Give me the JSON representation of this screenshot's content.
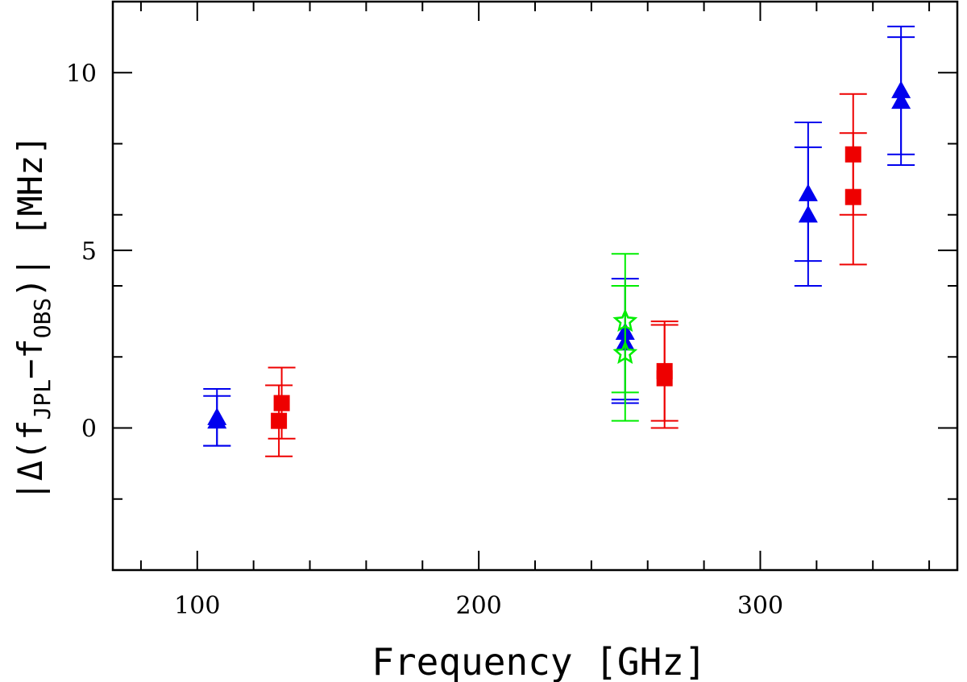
{
  "chart_data": {
    "type": "scatter",
    "title": "",
    "xlabel": "Frequency [GHz]",
    "ylabel": {
      "prefix": "|Δ(f",
      "sub1": "JPL",
      "mid": "−f",
      "sub2": "OBS",
      "suffix": ")|  [MHz]"
    },
    "xlim": [
      70,
      370
    ],
    "ylim": [
      -4,
      12
    ],
    "x_major_ticks": [
      100,
      200,
      300
    ],
    "x_tick_labels": [
      "100",
      "200",
      "300"
    ],
    "x_minor_step": 20,
    "y_major_ticks": [
      0,
      5,
      10
    ],
    "y_tick_labels": [
      "0",
      "5",
      "10"
    ],
    "y_minor_step": 2,
    "grid": false,
    "series": [
      {
        "name": "blue triangles",
        "marker": "triangle",
        "color": "#0000ee",
        "points": [
          {
            "x": 107,
            "y": 0.3,
            "err_lo": -0.5,
            "err_hi": 1.1
          },
          {
            "x": 107,
            "y": 0.2,
            "err_lo": -0.5,
            "err_hi": 0.9
          },
          {
            "x": 252,
            "y": 2.7,
            "err_lo": 0.8,
            "err_hi": 4.2
          },
          {
            "x": 252,
            "y": 2.4,
            "err_lo": 0.7,
            "err_hi": 4.0
          },
          {
            "x": 317,
            "y": 6.6,
            "err_lo": 4.7,
            "err_hi": 8.6
          },
          {
            "x": 317,
            "y": 6.0,
            "err_lo": 4.0,
            "err_hi": 7.9
          },
          {
            "x": 350,
            "y": 9.5,
            "err_lo": 7.7,
            "err_hi": 11.3
          },
          {
            "x": 350,
            "y": 9.2,
            "err_lo": 7.4,
            "err_hi": 11.0
          }
        ]
      },
      {
        "name": "red squares",
        "marker": "square",
        "color": "#ee0000",
        "points": [
          {
            "x": 130,
            "y": 0.7,
            "err_lo": -0.3,
            "err_hi": 1.7
          },
          {
            "x": 129,
            "y": 0.2,
            "err_lo": -0.8,
            "err_hi": 1.2
          },
          {
            "x": 266,
            "y": 1.6,
            "err_lo": 0.2,
            "err_hi": 3.0
          },
          {
            "x": 266,
            "y": 1.4,
            "err_lo": 0.0,
            "err_hi": 2.9
          },
          {
            "x": 333,
            "y": 7.7,
            "err_lo": 6.0,
            "err_hi": 9.4
          },
          {
            "x": 333,
            "y": 6.5,
            "err_lo": 4.6,
            "err_hi": 8.3
          }
        ]
      },
      {
        "name": "green open stars",
        "marker": "open-star",
        "color": "#00ee00",
        "points": [
          {
            "x": 252,
            "y": 3.0,
            "err_lo": 1.0,
            "err_hi": 4.9
          },
          {
            "x": 252,
            "y": 2.1,
            "err_lo": 0.2,
            "err_hi": 4.0
          }
        ]
      }
    ]
  }
}
